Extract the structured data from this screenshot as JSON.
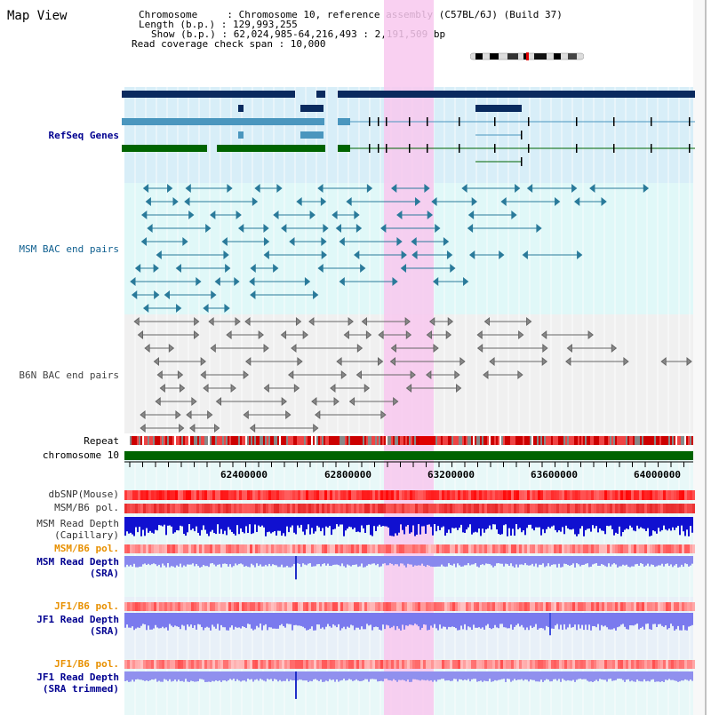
{
  "header": {
    "title": "Map View",
    "chromosome_line": "Chromosome     : Chromosome 10, reference assembly (C57BL/6J) (Build 37)",
    "length_line": "Length (b.p.) : 129,993,255",
    "show_line": "Show (b.p.) : 62,024,985-64,216,493 : 2,191,509 bp",
    "coverage_line": "Read coverage check span : 10,000"
  },
  "tracks": {
    "refseq": "RefSeq Genes",
    "msm_bac": "MSM BAC end pairs",
    "b6n_bac": "B6N BAC end pairs",
    "repeat": "Repeat",
    "chromosome": "chromosome 10",
    "dbsnp": "dbSNP(Mouse)",
    "msm_b6_pol_1": "MSM/B6 pol.",
    "msm_depth_cap_1": "MSM Read Depth",
    "msm_depth_cap_2": "(Capillary)",
    "msm_b6_pol_2": "MSM/B6 pol.",
    "msm_depth_sra_1": "MSM Read Depth",
    "msm_depth_sra_2": "(SRA)",
    "jf1_b6_pol_1": "JF1/B6 pol.",
    "jf1_depth_sra_1": "JF1 Read Depth",
    "jf1_depth_sra_2": "(SRA)",
    "jf1_b6_pol_2": "JF1/B6 pol.",
    "jf1_depth_trim_1": "JF1 Read Depth",
    "jf1_depth_trim_2": "(SRA trimmed)"
  },
  "axis": {
    "ticks": [
      "62400000",
      "62800000",
      "63200000",
      "63600000",
      "64000000"
    ]
  },
  "colors": {
    "refseq_dark": "#0a2a5e",
    "refseq_light": "#4a96be",
    "refseq_green": "#006400",
    "msm_bac": "#2a7a9a",
    "b6n_bac": "#666666",
    "highlight": "#f8c8ee",
    "label_blue": "#000090",
    "label_orange": "#e89000",
    "label_teal": "#106090"
  }
}
